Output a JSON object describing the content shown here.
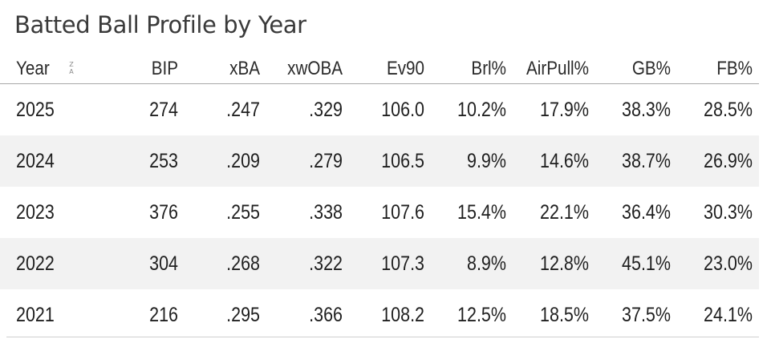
{
  "title": "Batted Ball Profile by Year",
  "table": {
    "columns": [
      "Year",
      "BIP",
      "xBA",
      "xwOBA",
      "Ev90",
      "Brl%",
      "AirPull%",
      "GB%",
      "FB%"
    ],
    "sort_icon": {
      "name": "sort-z-a-icon",
      "top": "Z",
      "bottom": "A"
    },
    "rows": [
      [
        "2025",
        "274",
        ".247",
        ".329",
        "106.0",
        "10.2%",
        "17.9%",
        "38.3%",
        "28.5%"
      ],
      [
        "2024",
        "253",
        ".209",
        ".279",
        "106.5",
        "9.9%",
        "14.6%",
        "38.7%",
        "26.9%"
      ],
      [
        "2023",
        "376",
        ".255",
        ".338",
        "107.6",
        "15.4%",
        "22.1%",
        "36.4%",
        "30.3%"
      ],
      [
        "2022",
        "304",
        ".268",
        ".322",
        "107.3",
        "8.9%",
        "12.8%",
        "45.1%",
        "23.0%"
      ],
      [
        "2021",
        "216",
        ".295",
        ".366",
        "108.2",
        "12.5%",
        "18.5%",
        "37.5%",
        "24.1%"
      ]
    ]
  },
  "colors": {
    "shaded_row": "#f2f2f2",
    "text": "#1f1f1f",
    "title": "#3a3a3a",
    "rule": "#a8a8a8"
  }
}
